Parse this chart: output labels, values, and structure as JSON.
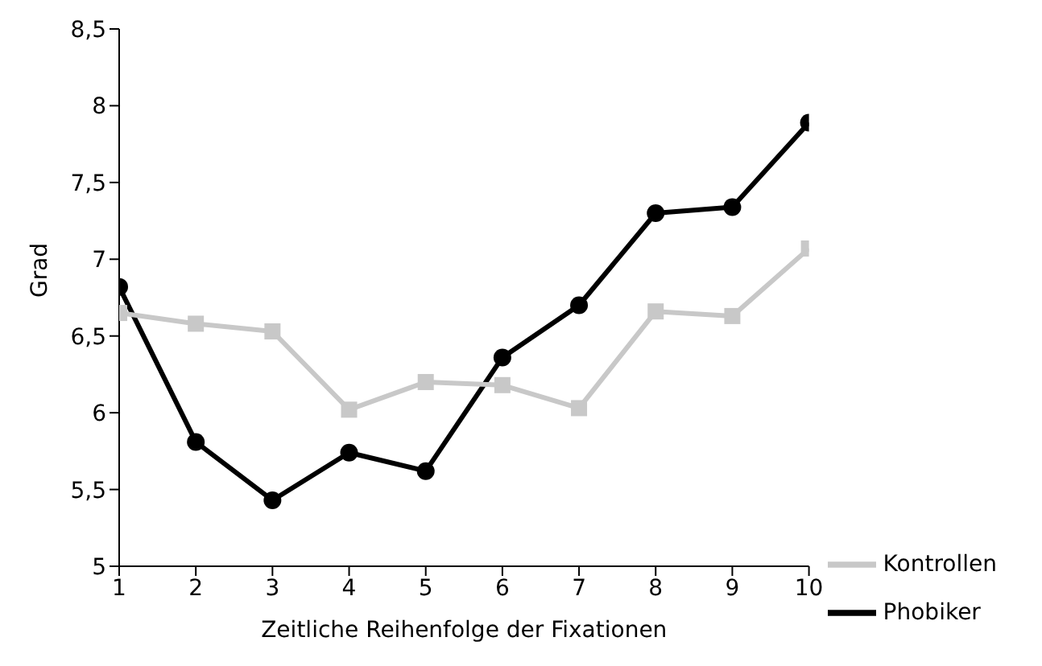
{
  "chart_data": {
    "type": "line",
    "xlabel": "Zeitliche Reihenfolge der Fixationen",
    "ylabel": "Grad",
    "x": [
      1,
      2,
      3,
      4,
      5,
      6,
      7,
      8,
      9,
      10
    ],
    "xlim": [
      1,
      10
    ],
    "xticks": [
      1,
      2,
      3,
      4,
      5,
      6,
      7,
      8,
      9,
      10
    ],
    "ylim": [
      5,
      8.5
    ],
    "yticks": [
      5,
      {
        "value": 5.5,
        "label": "5,5"
      },
      6,
      {
        "value": 6.5,
        "label": "6,5"
      },
      7,
      {
        "value": 7.5,
        "label": "7,5"
      },
      8,
      {
        "value": 8.5,
        "label": "8,5"
      }
    ],
    "grid": false,
    "legend": "bottom right",
    "line_style": "solid",
    "series": [
      {
        "name": "Phobiker",
        "color": "#000000",
        "marker": "circle",
        "values": [
          6.82,
          5.81,
          5.43,
          5.74,
          5.62,
          6.36,
          6.7,
          7.3,
          7.34,
          7.89
        ]
      },
      {
        "name": "Kontrollen",
        "color": "#c8c8c8",
        "marker": "square",
        "values": [
          6.65,
          6.58,
          6.53,
          6.02,
          6.2,
          6.18,
          6.03,
          6.66,
          6.63,
          7.07
        ]
      }
    ]
  }
}
